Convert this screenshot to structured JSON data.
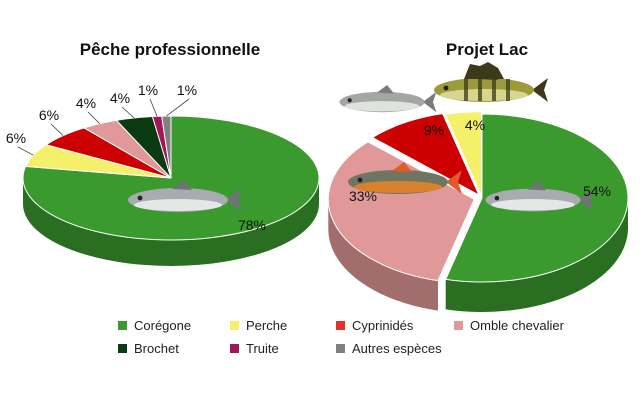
{
  "chart_data": [
    {
      "type": "pie",
      "title": "Pêche professionnelle",
      "slices": [
        {
          "name": "Corégone",
          "value": 78,
          "label": "78%",
          "color": "#3a9a2e"
        },
        {
          "name": "Perche",
          "value": 6,
          "label": "6%",
          "color": "#f5f06a"
        },
        {
          "name": "Cyprinidés",
          "value": 6,
          "label": "6%",
          "color": "#cc0000"
        },
        {
          "name": "Omble chevalier",
          "value": 4,
          "label": "4%",
          "color": "#e09898"
        },
        {
          "name": "Brochet",
          "value": 4,
          "label": "4%",
          "color": "#0a3a10"
        },
        {
          "name": "Truite",
          "value": 1,
          "label": "1%",
          "color": "#a0185a"
        },
        {
          "name": "Autres espèces",
          "value": 1,
          "label": "1%",
          "color": "#808080"
        }
      ]
    },
    {
      "type": "pie",
      "title": "Projet Lac",
      "slices": [
        {
          "name": "Corégone",
          "value": 54,
          "label": "54%",
          "color": "#3a9a2e"
        },
        {
          "name": "Omble chevalier",
          "value": 33,
          "label": "33%",
          "color": "#e09898"
        },
        {
          "name": "Cyprinidés",
          "value": 9,
          "label": "9%",
          "color": "#cc0000"
        },
        {
          "name": "Perche",
          "value": 4,
          "label": "4%",
          "color": "#f5f06a"
        }
      ]
    }
  ],
  "legend": [
    {
      "name": "Corégone",
      "color": "#3a9a2e"
    },
    {
      "name": "Perche",
      "color": "#f5f06a"
    },
    {
      "name": "Cyprinidés",
      "color": "#e03030"
    },
    {
      "name": "Omble chevalier",
      "color": "#e09898"
    },
    {
      "name": "Brochet",
      "color": "#0a3a10"
    },
    {
      "name": "Truite",
      "color": "#a0185a"
    },
    {
      "name": "Autres espèces",
      "color": "#808080"
    }
  ],
  "illustrations": [
    "whitefish-icon",
    "perch-icon",
    "roach-icon",
    "arctic-char-icon"
  ]
}
